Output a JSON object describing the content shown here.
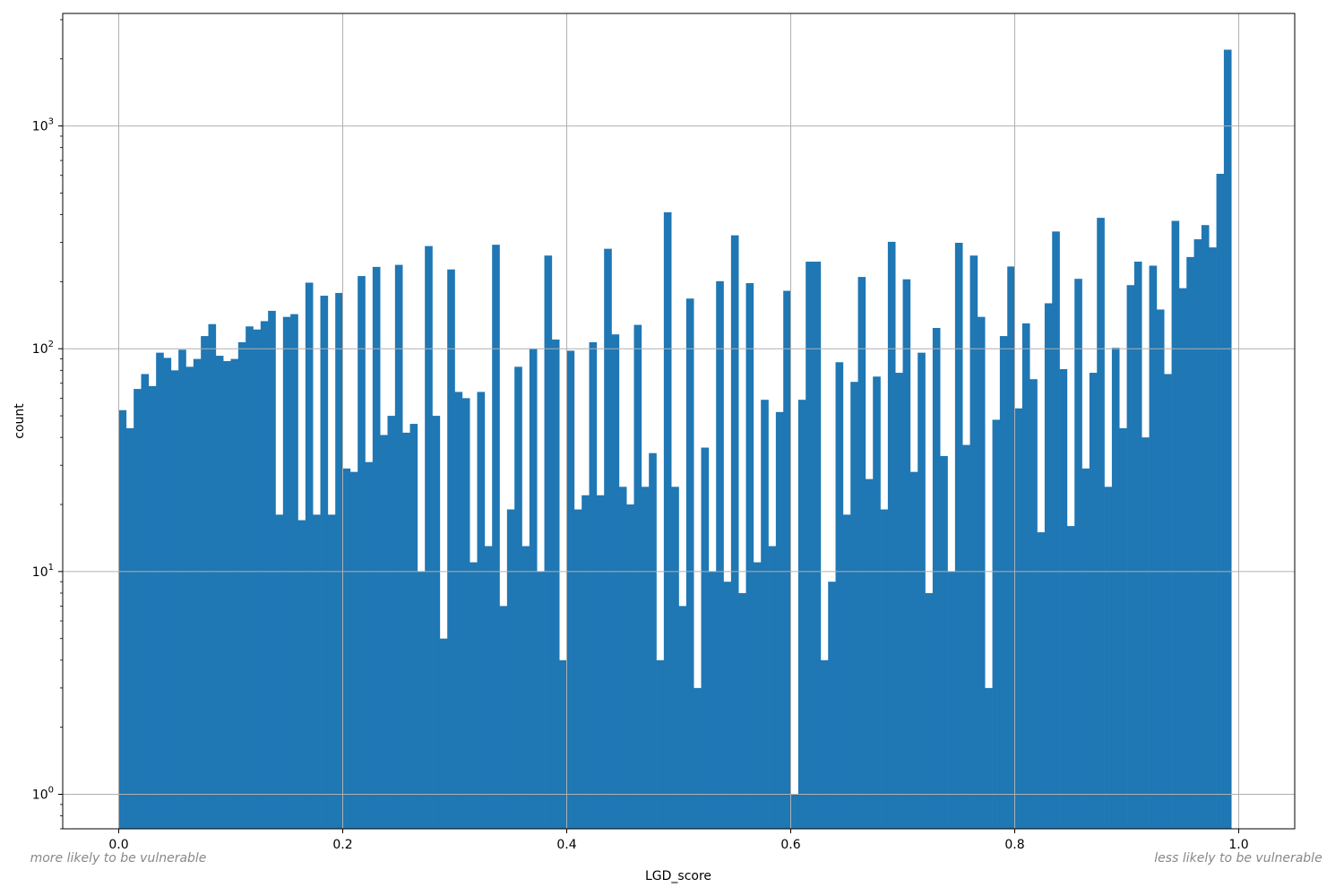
{
  "chart_data": {
    "type": "bar",
    "title": "",
    "xlabel": "LGD_score",
    "ylabel": "count",
    "y_scale": "log",
    "xlim": [
      -0.05,
      1.05
    ],
    "ylim": [
      0.7,
      3200
    ],
    "grid": true,
    "bar_color": "#1f77b4",
    "x_ticks": [
      "0.0",
      "0.2",
      "0.4",
      "0.6",
      "0.8",
      "1.0"
    ],
    "x_tick_values": [
      0,
      0.2,
      0.4,
      0.6,
      0.8,
      1.0
    ],
    "y_ticks": [
      {
        "value": 1,
        "base": "10",
        "exp": "0"
      },
      {
        "value": 10,
        "base": "10",
        "exp": "1"
      },
      {
        "value": 100,
        "base": "10",
        "exp": "2"
      },
      {
        "value": 1000,
        "base": "10",
        "exp": "3"
      }
    ],
    "bin_start": 0.0,
    "bin_width": 0.006667,
    "values": [
      53,
      44,
      66,
      77,
      68,
      96,
      91,
      80,
      99,
      83,
      90,
      114,
      129,
      93,
      88,
      90,
      107,
      126,
      122,
      133,
      148,
      18,
      139,
      143,
      17,
      198,
      18,
      173,
      18,
      178,
      29,
      28,
      212,
      31,
      233,
      41,
      50,
      238,
      42,
      46,
      10,
      289,
      50,
      5,
      227,
      64,
      60,
      11,
      64,
      13,
      293,
      7,
      19,
      83,
      13,
      100,
      10,
      262,
      110,
      4,
      98,
      19,
      22,
      107,
      22,
      281,
      116,
      24,
      20,
      128,
      24,
      34,
      4,
      410,
      24,
      7,
      168,
      3,
      36,
      10,
      201,
      9,
      323,
      8,
      197,
      11,
      59,
      13,
      52,
      182,
      1,
      59,
      246,
      246,
      4,
      9,
      87,
      18,
      71,
      210,
      26,
      75,
      19,
      302,
      78,
      205,
      28,
      96,
      8,
      124,
      33,
      10,
      299,
      37,
      262,
      139,
      3,
      48,
      114,
      234,
      54,
      130,
      73,
      15,
      160,
      336,
      81,
      16,
      206,
      29,
      78,
      387,
      24,
      101,
      44,
      193,
      246,
      40,
      236,
      150,
      77,
      375,
      187,
      258,
      310,
      359,
      285,
      610,
      2200
    ],
    "annotations": {
      "left": "more likely to be vulnerable",
      "right": "less likely to be vulnerable"
    }
  }
}
